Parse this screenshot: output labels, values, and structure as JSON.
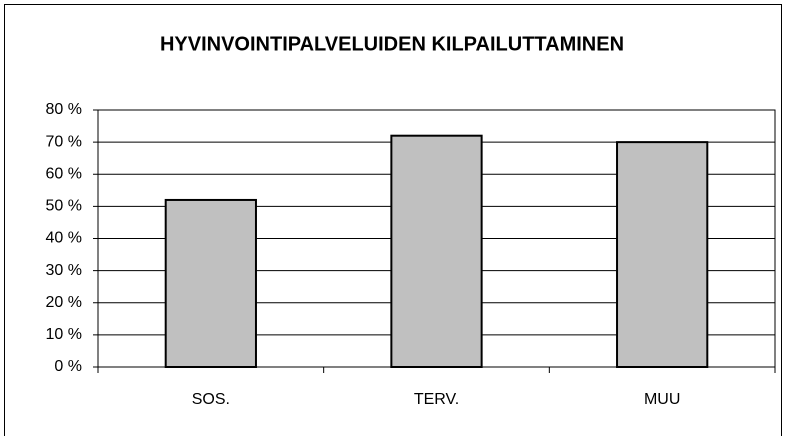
{
  "chart_data": {
    "type": "bar",
    "title": "HYVINVOINTIPALVELUIDEN KILPAILUTTAMINEN",
    "categories": [
      "SOS.",
      "TERV.",
      "MUU"
    ],
    "values": [
      52,
      72,
      70
    ],
    "color": "#c0c0c0",
    "ylim": [
      0,
      80
    ],
    "yticks": [
      {
        "value": 0,
        "label": "0 %"
      },
      {
        "value": 10,
        "label": "10 %"
      },
      {
        "value": 20,
        "label": "20 %"
      },
      {
        "value": 30,
        "label": "30 %"
      },
      {
        "value": 40,
        "label": "40 %"
      },
      {
        "value": 50,
        "label": "50 %"
      },
      {
        "value": 60,
        "label": "60 %"
      },
      {
        "value": 70,
        "label": "70 %"
      },
      {
        "value": 80,
        "label": "80 %"
      }
    ],
    "grid": true
  }
}
